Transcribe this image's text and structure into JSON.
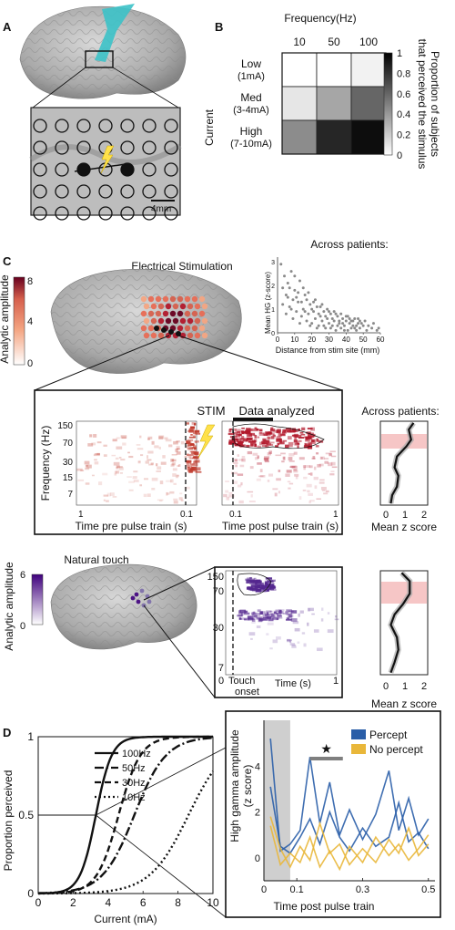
{
  "panel_labels": {
    "a": "A",
    "b": "B",
    "c": "C",
    "d": "D"
  },
  "panel_a": {
    "scale_bar": "4mm"
  },
  "panel_b": {
    "title": "Frequency(Hz)",
    "row_axis": "Current",
    "colorbar_label_line1": "Proportion of subjects",
    "colorbar_label_line2": "that perceived the stimulus",
    "colorbar_ticks": [
      "1",
      "0.8",
      "0.6",
      "0.4",
      "0.2",
      "0"
    ],
    "chart_data": {
      "type": "heatmap",
      "columns": [
        "10",
        "50",
        "100"
      ],
      "rows": [
        {
          "name": "Low",
          "sub": "(1mA)",
          "values": [
            0.0,
            0.0,
            0.05
          ]
        },
        {
          "name": "Med",
          "sub": "(3-4mA)",
          "values": [
            0.1,
            0.35,
            0.6
          ]
        },
        {
          "name": "High",
          "sub": "(7-10mA)",
          "values": [
            0.45,
            0.85,
            0.95
          ]
        }
      ],
      "zlim": [
        0,
        1
      ]
    }
  },
  "panel_c_scatter": {
    "title": "Across patients:",
    "ylabel": "Mean HG (z-score)",
    "xlabel": "Distance from stim site (mm)",
    "xticks": [
      "0",
      "10",
      "20",
      "30",
      "40",
      "50",
      "60"
    ],
    "yticks": [
      "0",
      "1",
      "2",
      "3"
    ],
    "chart_data": {
      "type": "scatter",
      "xlim": [
        0,
        60
      ],
      "ylim": [
        0,
        3.2
      ],
      "points": [
        [
          2,
          2.9
        ],
        [
          3,
          1.9
        ],
        [
          4,
          2.4
        ],
        [
          5,
          1.6
        ],
        [
          6,
          2.1
        ],
        [
          7,
          1.1
        ],
        [
          8,
          2.6
        ],
        [
          9,
          1.4
        ],
        [
          10,
          1.8
        ],
        [
          11,
          0.9
        ],
        [
          12,
          1.3
        ],
        [
          13,
          2.2
        ],
        [
          14,
          0.7
        ],
        [
          15,
          1.0
        ],
        [
          16,
          1.6
        ],
        [
          17,
          0.5
        ],
        [
          18,
          0.8
        ],
        [
          19,
          1.2
        ],
        [
          20,
          0.4
        ],
        [
          21,
          0.9
        ],
        [
          22,
          0.6
        ],
        [
          23,
          1.1
        ],
        [
          24,
          0.3
        ],
        [
          25,
          0.7
        ],
        [
          26,
          0.5
        ],
        [
          27,
          0.9
        ],
        [
          28,
          0.2
        ],
        [
          29,
          0.6
        ],
        [
          30,
          0.4
        ],
        [
          31,
          0.8
        ],
        [
          32,
          0.3
        ],
        [
          33,
          0.5
        ],
        [
          34,
          0.1
        ],
        [
          35,
          0.7
        ],
        [
          36,
          0.4
        ],
        [
          37,
          0.2
        ],
        [
          38,
          0.6
        ],
        [
          39,
          0.3
        ],
        [
          40,
          0.5
        ],
        [
          41,
          0.1
        ],
        [
          42,
          0.4
        ],
        [
          43,
          0.2
        ],
        [
          44,
          0.3
        ],
        [
          45,
          0.6
        ],
        [
          46,
          0.1
        ],
        [
          47,
          0.4
        ],
        [
          48,
          0.2
        ],
        [
          50,
          0.3
        ],
        [
          52,
          0.1
        ],
        [
          55,
          0.2
        ],
        [
          58,
          0.1
        ],
        [
          3,
          1.2
        ],
        [
          5,
          0.8
        ],
        [
          7,
          1.9
        ],
        [
          9,
          0.6
        ],
        [
          11,
          1.5
        ],
        [
          13,
          0.4
        ],
        [
          15,
          1.9
        ],
        [
          17,
          1.4
        ],
        [
          19,
          0.3
        ],
        [
          21,
          1.3
        ],
        [
          23,
          0.2
        ],
        [
          25,
          1.1
        ],
        [
          27,
          0.3
        ],
        [
          29,
          1.0
        ],
        [
          31,
          0.2
        ],
        [
          33,
          0.9
        ],
        [
          35,
          0.3
        ],
        [
          37,
          0.8
        ],
        [
          39,
          0.1
        ],
        [
          41,
          0.7
        ],
        [
          43,
          0.5
        ],
        [
          45,
          0.2
        ],
        [
          47,
          0.6
        ],
        [
          49,
          0.4
        ],
        [
          51,
          0.5
        ],
        [
          53,
          0.3
        ],
        [
          56,
          0.4
        ],
        [
          59,
          0.2
        ],
        [
          6,
          1.5
        ],
        [
          8,
          1.0
        ],
        [
          10,
          2.4
        ],
        [
          12,
          1.7
        ],
        [
          14,
          1.3
        ],
        [
          16,
          0.9
        ],
        [
          18,
          1.7
        ],
        [
          20,
          1.0
        ],
        [
          22,
          1.4
        ],
        [
          24,
          0.8
        ],
        [
          26,
          1.2
        ],
        [
          28,
          0.7
        ],
        [
          30,
          0.9
        ],
        [
          32,
          0.6
        ],
        [
          34,
          0.8
        ],
        [
          36,
          0.5
        ],
        [
          38,
          0.4
        ],
        [
          40,
          0.7
        ],
        [
          42,
          0.6
        ],
        [
          44,
          0.5
        ],
        [
          46,
          0.3
        ],
        [
          48,
          0.5
        ]
      ]
    }
  },
  "panel_c_stim": {
    "title": "Electrical Stimulation",
    "colorbar_label": "Analytic amplitude",
    "colorbar_ticks": [
      "8",
      "4",
      "0"
    ],
    "stim_label": "STIM",
    "analyzed_label": "Data analyzed",
    "ylabel": "Frequency (Hz)",
    "yticks": [
      "150",
      "70",
      "30",
      "15",
      "7"
    ],
    "xlabel_pre": "Time pre pulse train (s)",
    "xlabel_post": "Time post pulse train (s)",
    "xticks_pre": [
      "1",
      "0.1"
    ],
    "xticks_post": [
      "0.1",
      "1"
    ],
    "across_title": "Across patients:",
    "profile_xlabel": "Mean z score",
    "profile_xticks": [
      "0",
      "1",
      "2"
    ]
  },
  "panel_c_touch": {
    "title": "Natural touch",
    "colorbar_label": "Analytic amplitude",
    "colorbar_ticks": [
      "6",
      "0"
    ],
    "yticks": [
      "150",
      "70",
      "30",
      "7"
    ],
    "xtick_left": "0",
    "touch_line1": "Touch",
    "touch_line2": "onset",
    "time_label": "Time (s)",
    "xtick_right": "1",
    "profile_xlabel": "Mean z score",
    "profile_xticks": [
      "0",
      "1",
      "2"
    ]
  },
  "panel_d_psych": {
    "ylabel": "Proportion perceived",
    "xlabel": "Current (mA)",
    "xticks": [
      "0",
      "2",
      "4",
      "6",
      "8",
      "10"
    ],
    "yticks": [
      "0",
      "0.5",
      "1"
    ],
    "chart_data": {
      "type": "line",
      "xlim": [
        0,
        10
      ],
      "ylim": [
        0,
        1
      ],
      "series": [
        {
          "name": "100Hz",
          "style": "solid",
          "midpoint": 3.3,
          "slope": 2.2
        },
        {
          "name": "50Hz",
          "style": "dashdot",
          "midpoint": 5.5,
          "slope": 1.1
        },
        {
          "name": "30Hz",
          "style": "dashed",
          "midpoint": 4.6,
          "slope": 1.6
        },
        {
          "name": "10Hz",
          "style": "dotted",
          "midpoint": 8.6,
          "slope": 0.9
        }
      ]
    }
  },
  "panel_d_trace": {
    "ylabel_line1": "High gamma amplitude",
    "ylabel_line2": "(z score)",
    "xlabel": "Time post pulse train",
    "xticks": [
      "0",
      "0.1",
      "0.3",
      "0.5"
    ],
    "yticks": [
      "4",
      "2",
      "0"
    ],
    "legend": [
      {
        "name": "Percept",
        "color": "#2a5ea8"
      },
      {
        "name": "No percept",
        "color": "#e9b73a"
      }
    ],
    "star": "★",
    "chart_data": {
      "type": "line",
      "xlim": [
        0,
        0.52
      ],
      "ylim": [
        -1,
        6
      ],
      "series": [
        {
          "name": "Percept",
          "color": "#2a5ea8",
          "values": [
            [
              0.02,
              5.2
            ],
            [
              0.05,
              0.3
            ],
            [
              0.08,
              0.6
            ],
            [
              0.11,
              1.2
            ],
            [
              0.14,
              4.4
            ],
            [
              0.17,
              1.5
            ],
            [
              0.2,
              3.3
            ],
            [
              0.23,
              1.0
            ],
            [
              0.26,
              2.1
            ],
            [
              0.3,
              0.8
            ],
            [
              0.34,
              1.9
            ],
            [
              0.38,
              3.8
            ],
            [
              0.41,
              1.2
            ],
            [
              0.44,
              2.6
            ],
            [
              0.47,
              1.0
            ],
            [
              0.5,
              1.7
            ]
          ]
        },
        {
          "name": "Percept",
          "color": "#2a5ea8",
          "values": [
            [
              0.02,
              3.1
            ],
            [
              0.05,
              0.5
            ],
            [
              0.08,
              0.2
            ],
            [
              0.11,
              0.9
            ],
            [
              0.14,
              1.7
            ],
            [
              0.17,
              0.6
            ],
            [
              0.2,
              2.0
            ],
            [
              0.23,
              0.9
            ],
            [
              0.26,
              0.3
            ],
            [
              0.3,
              1.3
            ],
            [
              0.34,
              0.5
            ],
            [
              0.38,
              0.9
            ],
            [
              0.41,
              2.4
            ],
            [
              0.44,
              0.7
            ],
            [
              0.47,
              1.1
            ],
            [
              0.5,
              0.4
            ]
          ]
        },
        {
          "name": "No percept",
          "color": "#e9b73a",
          "values": [
            [
              0.02,
              1.4
            ],
            [
              0.05,
              -0.3
            ],
            [
              0.08,
              0.2
            ],
            [
              0.11,
              -0.2
            ],
            [
              0.14,
              0.9
            ],
            [
              0.17,
              -0.4
            ],
            [
              0.2,
              0.3
            ],
            [
              0.23,
              -0.5
            ],
            [
              0.26,
              0.5
            ],
            [
              0.3,
              -0.2
            ],
            [
              0.34,
              0.9
            ],
            [
              0.38,
              0.1
            ],
            [
              0.41,
              0.6
            ],
            [
              0.44,
              -0.1
            ],
            [
              0.47,
              0.4
            ],
            [
              0.5,
              1.0
            ]
          ]
        },
        {
          "name": "No percept",
          "color": "#e9b73a",
          "values": [
            [
              0.02,
              1.8
            ],
            [
              0.05,
              0.4
            ],
            [
              0.08,
              -0.4
            ],
            [
              0.11,
              0.5
            ],
            [
              0.14,
              -0.1
            ],
            [
              0.17,
              1.5
            ],
            [
              0.2,
              0.2
            ],
            [
              0.23,
              0.6
            ],
            [
              0.26,
              -0.3
            ],
            [
              0.3,
              0.4
            ],
            [
              0.34,
              -0.2
            ],
            [
              0.38,
              0.8
            ],
            [
              0.41,
              0.2
            ],
            [
              0.44,
              1.3
            ],
            [
              0.47,
              0.1
            ],
            [
              0.5,
              0.6
            ]
          ]
        }
      ],
      "shaded_window": [
        0.0,
        0.08
      ],
      "bar_window": [
        0.14,
        0.24
      ]
    }
  }
}
